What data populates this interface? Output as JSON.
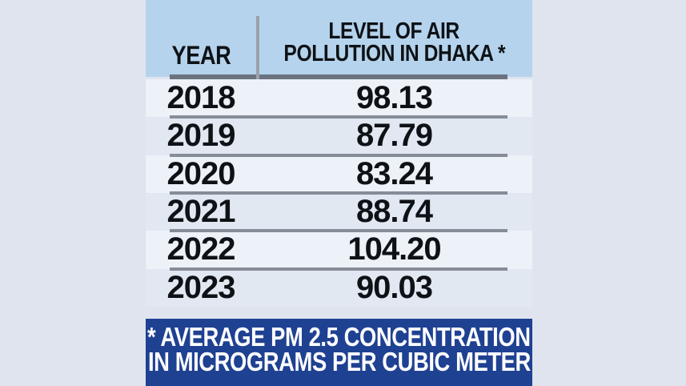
{
  "table": {
    "header": {
      "year_label": "YEAR",
      "pollution_label_line1": "LEVEL OF AIR",
      "pollution_label_line2": "POLLUTION IN DHAKA *"
    },
    "rows": [
      {
        "year": "2018",
        "value": "98.13"
      },
      {
        "year": "2019",
        "value": "87.79"
      },
      {
        "year": "2020",
        "value": "83.24"
      },
      {
        "year": "2021",
        "value": "88.74"
      },
      {
        "year": "2022",
        "value": "104.20"
      },
      {
        "year": "2023",
        "value": "90.03"
      }
    ]
  },
  "footnote": {
    "line1": "* AVERAGE PM 2.5 CONCENTRATION",
    "line2": "IN MICROGRAMS PER CUBIC METER"
  },
  "colors": {
    "page_background": "#dfe4ef",
    "header_background": "#b5d3ec",
    "row_light": "#edf1f8",
    "row_dark": "#e2e8f2",
    "divider": "#858d98",
    "header_divider": "#6b7380",
    "vertical_divider": "#9aa1ab",
    "footnote_background": "#1f4192",
    "footnote_text": "#ffffff",
    "text": "#0e1216"
  },
  "chart_data": {
    "type": "table",
    "title": "LEVEL OF AIR POLLUTION IN DHAKA",
    "columns": [
      "YEAR",
      "LEVEL OF AIR POLLUTION IN DHAKA *"
    ],
    "categories": [
      "2018",
      "2019",
      "2020",
      "2021",
      "2022",
      "2023"
    ],
    "values": [
      98.13,
      87.79,
      83.24,
      88.74,
      104.2,
      90.03
    ],
    "footnote": "* AVERAGE PM 2.5 CONCENTRATION IN MICROGRAMS PER CUBIC METER",
    "unit": "micrograms per cubic meter (PM 2.5)"
  }
}
